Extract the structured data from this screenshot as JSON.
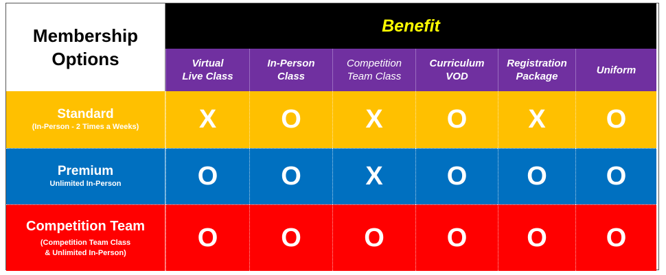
{
  "corner": {
    "line1": "Membership",
    "line2": "Options"
  },
  "header": {
    "title": "Benefit"
  },
  "benefits": [
    {
      "line1": "Virtual",
      "line2": "Live Class"
    },
    {
      "line1": "In-Person",
      "line2": "Class"
    },
    {
      "line1": "Competition",
      "line2": "Team Class"
    },
    {
      "line1": "Curriculum",
      "line2": "VOD"
    },
    {
      "line1": "Registration",
      "line2": "Package"
    },
    {
      "line1": "Uniform",
      "line2": ""
    }
  ],
  "rows": [
    {
      "title": "Standard",
      "sub1": "(In-Person - 2 Times a Weeks)",
      "sub2": "",
      "color": "#ffc000",
      "marks": [
        "X",
        "O",
        "X",
        "O",
        "X",
        "O"
      ]
    },
    {
      "title": "Premium",
      "sub1": "Unlimited In-Person",
      "sub2": "",
      "color": "#0070c0",
      "marks": [
        "O",
        "O",
        "X",
        "O",
        "O",
        "O"
      ]
    },
    {
      "title": "Competition Team",
      "sub1": "(Competition Team Class",
      "sub2": "& Unlimited In-Person)",
      "color": "#ff0000",
      "marks": [
        "O",
        "O",
        "O",
        "O",
        "O",
        "O"
      ]
    }
  ]
}
